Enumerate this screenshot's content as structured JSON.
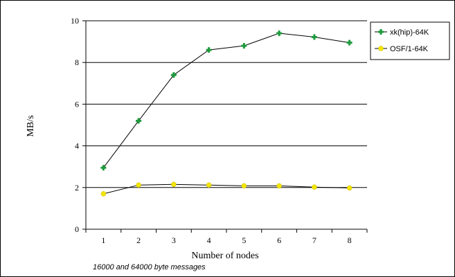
{
  "chart_data": {
    "type": "line",
    "title": "",
    "xlabel": "Number of nodes",
    "ylabel": "MB/s",
    "categories": [
      "1",
      "2",
      "3",
      "4",
      "5",
      "6",
      "7",
      "8"
    ],
    "x": [
      1,
      2,
      3,
      4,
      5,
      6,
      7,
      8
    ],
    "ylim": [
      0,
      10
    ],
    "yticks": [
      0,
      2,
      4,
      6,
      8,
      10
    ],
    "grid": "horizontal",
    "legend_position": "top-right",
    "series": [
      {
        "name": "xk(hip)-64K",
        "marker": "plus",
        "color": "#1e9a3c",
        "values": [
          2.95,
          5.2,
          7.4,
          8.6,
          8.8,
          9.4,
          9.22,
          8.95
        ]
      },
      {
        "name": "OSF/1-64K",
        "marker": "circle",
        "color": "#f2e600",
        "values": [
          1.7,
          2.12,
          2.15,
          2.12,
          2.08,
          2.08,
          2.02,
          1.98
        ]
      }
    ],
    "annotation": "16000 and 64000 byte messages"
  }
}
